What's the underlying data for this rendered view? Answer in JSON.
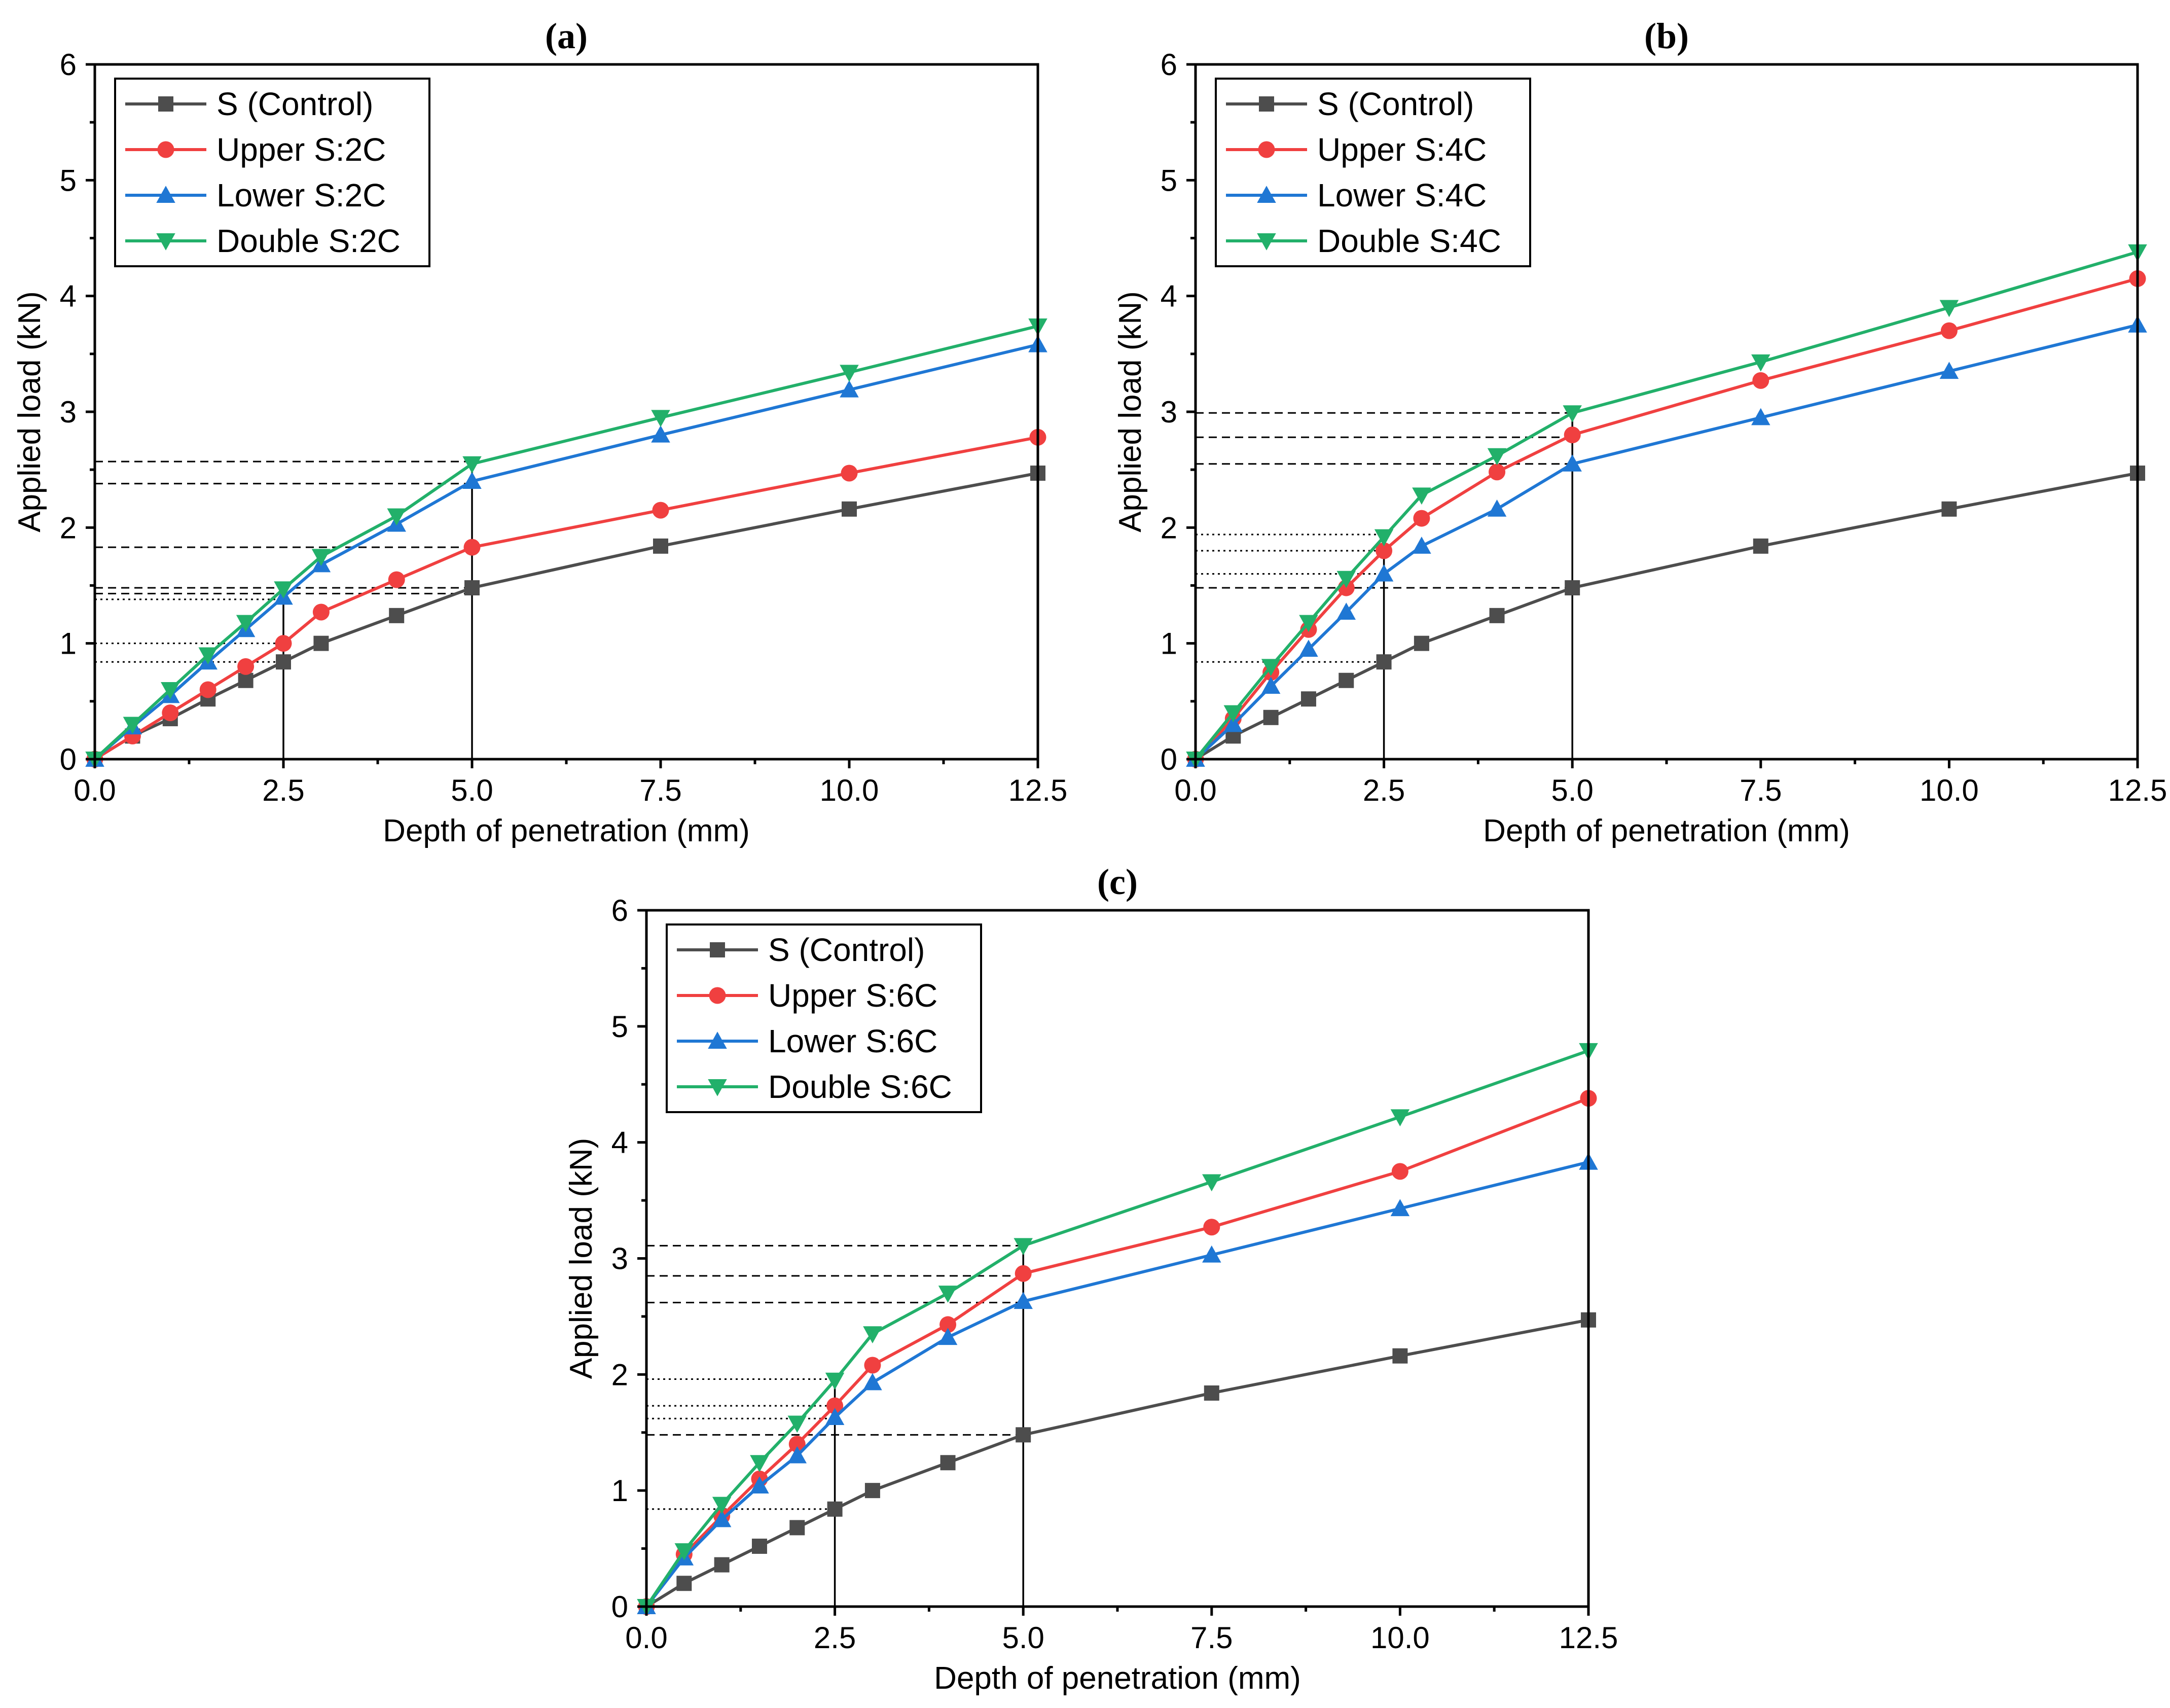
{
  "chart_data": [
    {
      "type": "line",
      "title": "(a)",
      "xlabel": "Depth of penetration (mm)",
      "ylabel": "Applied load (kN)",
      "xlim": [
        0,
        12.5
      ],
      "ylim": [
        0,
        6
      ],
      "xticks": [
        "0.0",
        "2.5",
        "5.0",
        "7.5",
        "10.0",
        "12.5"
      ],
      "yticks": [
        "0",
        "1",
        "2",
        "3",
        "4",
        "5",
        "6"
      ],
      "legend_position": "top-left",
      "x": [
        0,
        0.5,
        1,
        1.5,
        2,
        2.5,
        3,
        4,
        5,
        7.5,
        10,
        12.5
      ],
      "series": [
        {
          "name": "S (Control)",
          "color": "#4d4d4d",
          "marker": "square",
          "values": [
            0,
            0.2,
            0.35,
            0.52,
            0.68,
            0.84,
            1.0,
            1.24,
            1.48,
            1.84,
            2.16,
            2.47
          ]
        },
        {
          "name": "Upper S:2C",
          "color": "#f04040",
          "marker": "circle",
          "values": [
            0,
            0.2,
            0.4,
            0.6,
            0.8,
            1.0,
            1.27,
            1.55,
            1.83,
            2.15,
            2.47,
            2.78
          ]
        },
        {
          "name": "Lower S:2C",
          "color": "#1f77d4",
          "marker": "triangle-up",
          "values": [
            0,
            0.28,
            0.55,
            0.84,
            1.12,
            1.4,
            1.68,
            2.03,
            2.4,
            2.8,
            3.19,
            3.58
          ]
        },
        {
          "name": "Double S:2C",
          "color": "#22b06a",
          "marker": "triangle-down",
          "values": [
            0,
            0.3,
            0.6,
            0.9,
            1.18,
            1.47,
            1.75,
            2.1,
            2.55,
            2.95,
            3.34,
            3.74
          ]
        }
      ],
      "dashed_refs": [
        2.57,
        2.38,
        1.83,
        1.48,
        1.43
      ],
      "dotted_refs": [
        1.38,
        1.0,
        0.84
      ],
      "vertical_refs": [
        2.5,
        5.0
      ]
    },
    {
      "type": "line",
      "title": "(b)",
      "xlabel": "Depth of penetration (mm)",
      "ylabel": "Applied load (kN)",
      "xlim": [
        0,
        12.5
      ],
      "ylim": [
        0,
        6
      ],
      "xticks": [
        "0.0",
        "2.5",
        "5.0",
        "7.5",
        "10.0",
        "12.5"
      ],
      "yticks": [
        "0",
        "1",
        "2",
        "3",
        "4",
        "5",
        "6"
      ],
      "legend_position": "top-left",
      "x": [
        0,
        0.5,
        1,
        1.5,
        2,
        2.5,
        3,
        4,
        5,
        7.5,
        10,
        12.5
      ],
      "series": [
        {
          "name": "S (Control)",
          "color": "#4d4d4d",
          "marker": "square",
          "values": [
            0,
            0.2,
            0.36,
            0.52,
            0.68,
            0.84,
            1.0,
            1.24,
            1.48,
            1.84,
            2.16,
            2.47
          ]
        },
        {
          "name": "Upper S:4C",
          "color": "#f04040",
          "marker": "circle",
          "values": [
            0,
            0.35,
            0.75,
            1.12,
            1.48,
            1.8,
            2.08,
            2.48,
            2.8,
            3.27,
            3.7,
            4.15
          ]
        },
        {
          "name": "Lower S:4C",
          "color": "#1f77d4",
          "marker": "triangle-up",
          "values": [
            0,
            0.3,
            0.63,
            0.95,
            1.27,
            1.6,
            1.84,
            2.16,
            2.55,
            2.95,
            3.35,
            3.75
          ]
        },
        {
          "name": "Double S:4C",
          "color": "#22b06a",
          "marker": "triangle-down",
          "values": [
            0,
            0.4,
            0.8,
            1.18,
            1.56,
            1.92,
            2.28,
            2.62,
            2.99,
            3.43,
            3.9,
            4.38
          ]
        }
      ],
      "dashed_refs": [
        2.99,
        2.78,
        2.55,
        1.48
      ],
      "dotted_refs": [
        1.94,
        1.8,
        1.6,
        0.84
      ],
      "vertical_refs": [
        2.5,
        5.0
      ]
    },
    {
      "type": "line",
      "title": "(c)",
      "xlabel": "Depth of penetration (mm)",
      "ylabel": "Applied load (kN)",
      "xlim": [
        0,
        12.5
      ],
      "ylim": [
        0,
        6
      ],
      "xticks": [
        "0.0",
        "2.5",
        "5.0",
        "7.5",
        "10.0",
        "12.5"
      ],
      "yticks": [
        "0",
        "1",
        "2",
        "3",
        "4",
        "5",
        "6"
      ],
      "legend_position": "top-left",
      "x": [
        0,
        0.5,
        1,
        1.5,
        2,
        2.5,
        3,
        4,
        5,
        7.5,
        10,
        12.5
      ],
      "series": [
        {
          "name": "S (Control)",
          "color": "#4d4d4d",
          "marker": "square",
          "values": [
            0,
            0.2,
            0.36,
            0.52,
            0.68,
            0.84,
            1.0,
            1.24,
            1.48,
            1.84,
            2.16,
            2.47
          ]
        },
        {
          "name": "Upper S:6C",
          "color": "#f04040",
          "marker": "circle",
          "values": [
            0,
            0.45,
            0.78,
            1.1,
            1.4,
            1.73,
            2.08,
            2.43,
            2.87,
            3.27,
            3.75,
            4.38
          ]
        },
        {
          "name": "Lower S:6C",
          "color": "#1f77d4",
          "marker": "triangle-up",
          "values": [
            0,
            0.42,
            0.75,
            1.04,
            1.3,
            1.63,
            1.93,
            2.32,
            2.63,
            3.03,
            3.43,
            3.83
          ]
        },
        {
          "name": "Double S:6C",
          "color": "#22b06a",
          "marker": "triangle-down",
          "values": [
            0,
            0.48,
            0.88,
            1.24,
            1.58,
            1.95,
            2.35,
            2.7,
            3.11,
            3.66,
            4.22,
            4.79
          ]
        }
      ],
      "dashed_refs": [
        3.11,
        2.85,
        2.62,
        1.48
      ],
      "dotted_refs": [
        1.96,
        1.73,
        1.62,
        0.84
      ],
      "vertical_refs": [
        2.5,
        5.0
      ]
    }
  ]
}
